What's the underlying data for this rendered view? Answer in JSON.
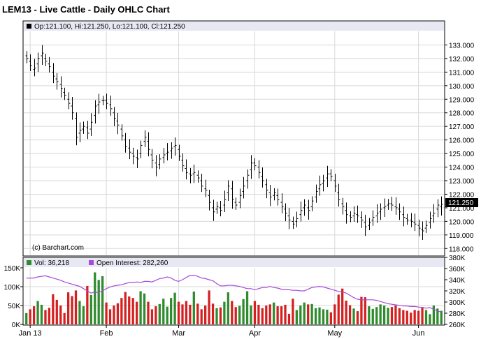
{
  "title": "LEM13 - Live Cattle - Daily OHLC Chart",
  "price_legend": "Op:121.100, Hi:121.250, Lo:121.100, Cl:121.250",
  "last_price_label": "121.250",
  "watermark": "(c) Barchart.com",
  "volume_legend": "Vol: 36,218",
  "oi_legend": "Open Interest: 282,260",
  "x_ticks": [
    "Jan 13",
    "Feb",
    "Mar",
    "Apr",
    "May",
    "Jun"
  ],
  "price_ticks": [
    "118.000",
    "119.000",
    "120.000",
    "121.000",
    "122.000",
    "123.000",
    "124.000",
    "125.000",
    "126.000",
    "127.000",
    "128.000",
    "129.000",
    "130.000",
    "131.000",
    "132.000",
    "133.000"
  ],
  "volume_ticks": [
    "0K",
    "50K",
    "100K",
    "150K"
  ],
  "oi_ticks": [
    "260K",
    "280K",
    "300K",
    "320K",
    "340K",
    "360K",
    "380K"
  ],
  "colors": {
    "up": "#2e8b2e",
    "down": "#d42020",
    "oi": "#a64ad8",
    "bar": "#000000",
    "panel_border": "#000000",
    "grid": "#d8d8d8",
    "vol_header_bg": "#e8e8f4"
  },
  "chart_data": {
    "type": "ohlc",
    "price_ylim": [
      117.5,
      134
    ],
    "vol_ylim": [
      0,
      150
    ],
    "oi_ylim": [
      260,
      380
    ],
    "month_start_index": {
      "Jan 13": 1,
      "Feb": 21,
      "Mar": 40,
      "Apr": 60,
      "May": 81,
      "Jun": 103
    },
    "close": [
      132.0,
      131.5,
      131.3,
      132.0,
      132.4,
      131.8,
      131.4,
      130.7,
      130.3,
      129.8,
      129.3,
      128.7,
      128.0,
      126.2,
      126.7,
      127.0,
      126.5,
      127.3,
      128.5,
      128.8,
      128.9,
      128.7,
      128.3,
      127.6,
      127.1,
      126.3,
      125.5,
      125.1,
      124.8,
      124.6,
      125.6,
      126.2,
      125.3,
      124.5,
      124.0,
      124.6,
      124.9,
      125.1,
      125.4,
      125.6,
      124.8,
      124.1,
      123.6,
      123.4,
      123.6,
      123.2,
      122.6,
      122.3,
      121.4,
      120.7,
      121.1,
      120.8,
      121.6,
      122.6,
      121.6,
      121.2,
      121.9,
      122.6,
      123.4,
      124.3,
      124.1,
      123.6,
      123.0,
      122.3,
      121.8,
      122.1,
      121.6,
      121.1,
      120.6,
      120.1,
      119.8,
      120.2,
      120.8,
      121.2,
      120.8,
      121.5,
      122.2,
      122.7,
      123.0,
      123.5,
      123.3,
      122.6,
      121.6,
      121.1,
      120.5,
      120.3,
      120.6,
      120.4,
      120.1,
      119.6,
      119.9,
      120.3,
      120.6,
      120.9,
      121.1,
      121.3,
      121.2,
      121.0,
      120.7,
      120.3,
      120.1,
      120.0,
      119.8,
      119.5,
      119.3,
      119.7,
      120.2,
      120.6,
      121.2,
      121.25
    ],
    "open": [
      132.2,
      131.8,
      131.2,
      131.6,
      132.2,
      132.0,
      131.6,
      131.0,
      130.5,
      130.1,
      129.5,
      129.0,
      128.5,
      127.6,
      126.5,
      126.8,
      126.9,
      126.8,
      127.8,
      128.6,
      128.9,
      128.9,
      128.6,
      128.0,
      127.4,
      126.8,
      126.0,
      125.4,
      125.0,
      124.7,
      125.0,
      125.9,
      125.9,
      124.9,
      124.3,
      124.2,
      124.7,
      125.0,
      125.2,
      125.5,
      125.3,
      124.5,
      123.9,
      123.5,
      123.5,
      123.4,
      123.0,
      122.4,
      121.9,
      121.0,
      120.9,
      121.0,
      121.2,
      122.1,
      122.4,
      121.4,
      121.4,
      122.2,
      123.0,
      123.8,
      124.3,
      124.0,
      123.3,
      122.7,
      122.1,
      121.9,
      121.9,
      121.4,
      120.9,
      120.4,
      120.0,
      120.0,
      120.5,
      121.0,
      121.0,
      121.1,
      121.8,
      122.4,
      122.8,
      123.2,
      123.5,
      123.0,
      122.1,
      121.3,
      120.8,
      120.4,
      120.4,
      120.5,
      120.3,
      119.9,
      119.7,
      120.1,
      120.4,
      120.7,
      121.0,
      121.2,
      121.3,
      121.1,
      120.9,
      120.5,
      120.2,
      120.1,
      119.9,
      119.7,
      119.4,
      119.5,
      119.9,
      120.4,
      120.9,
      121.1
    ],
    "volume": [
      30,
      40,
      48,
      62,
      52,
      38,
      44,
      80,
      65,
      50,
      30,
      85,
      75,
      90,
      62,
      48,
      102,
      78,
      138,
      118,
      128,
      58,
      40,
      50,
      56,
      70,
      86,
      74,
      70,
      60,
      88,
      82,
      60,
      40,
      48,
      54,
      68,
      47,
      70,
      84,
      60,
      53,
      62,
      52,
      87,
      55,
      40,
      50,
      90,
      55,
      43,
      45,
      60,
      85,
      62,
      46,
      49,
      67,
      88,
      50,
      62,
      52,
      43,
      50,
      53,
      58,
      48,
      48,
      52,
      28,
      68,
      38,
      50,
      58,
      53,
      54,
      43,
      45,
      40,
      39,
      32,
      53,
      79,
      95,
      63,
      51,
      42,
      35,
      73,
      72,
      48,
      41,
      46,
      53,
      50,
      44,
      46,
      50,
      43,
      38,
      36,
      31,
      38,
      36,
      46,
      38,
      27,
      50,
      42,
      36
    ],
    "oi": [
      343,
      343,
      343,
      345,
      346,
      347,
      345,
      343,
      341,
      339,
      336,
      334,
      332,
      330,
      328,
      324,
      320,
      316,
      318,
      317,
      320,
      324,
      327,
      329,
      330,
      331,
      333,
      335,
      335,
      336,
      335,
      337,
      337,
      336,
      339,
      342,
      343,
      345,
      343,
      339,
      337,
      340,
      344,
      348,
      348,
      346,
      343,
      342,
      340,
      338,
      333,
      329,
      329,
      330,
      330,
      329,
      328,
      326,
      324,
      324,
      322,
      324,
      326,
      326,
      328,
      326,
      325,
      323,
      322,
      322,
      321,
      321,
      320,
      320,
      323,
      326,
      327,
      328,
      327,
      325,
      323,
      321,
      319,
      318,
      316,
      312,
      308,
      305,
      304,
      304,
      304,
      304,
      303,
      301,
      299,
      297,
      296,
      295,
      294,
      293,
      293,
      292,
      292,
      291,
      290,
      289,
      290,
      287,
      284,
      282
    ]
  }
}
